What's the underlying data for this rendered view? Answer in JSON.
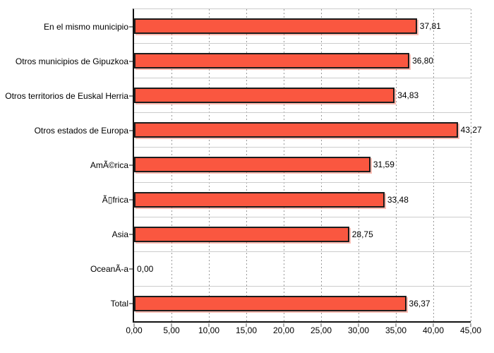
{
  "chart_data": {
    "type": "bar",
    "orientation": "horizontal",
    "title": "",
    "xlabel": "",
    "ylabel": "",
    "categories": [
      "En el mismo municipio",
      "Otros municipios de Gipuzkoa",
      "Otros territorios de Euskal Herria",
      "Otros estados de Europa",
      "AmÃ©rica",
      "Ã▯frica",
      "Asia",
      "OceanÃ-a",
      "Total"
    ],
    "values": [
      37.81,
      36.8,
      34.83,
      43.27,
      31.59,
      33.48,
      28.75,
      0.0,
      36.37
    ],
    "value_labels": [
      "37,81",
      "36,80",
      "34,83",
      "43,27",
      "31,59",
      "33,48",
      "28,75",
      "0,00",
      "36,37"
    ],
    "x_tick_labels": [
      "0,00",
      "5,00",
      "10,00",
      "15,00",
      "20,00",
      "25,00",
      "30,00",
      "35,00",
      "40,00",
      "45,00"
    ],
    "xlim": [
      0,
      45
    ],
    "x_tick_step": 5,
    "legend": "none",
    "grid": {
      "vertical": "dashed",
      "horizontal": "row-separator-lines"
    },
    "colors": {
      "bar_fill": "#fa5740",
      "bar_border": "#1c1c1c",
      "bar_shadow": "#f9ab9c",
      "axis": "#111111",
      "row_separator": "#cccccc",
      "gridline_dots": "#999999",
      "text": "#000000",
      "background": "#ffffff"
    }
  }
}
